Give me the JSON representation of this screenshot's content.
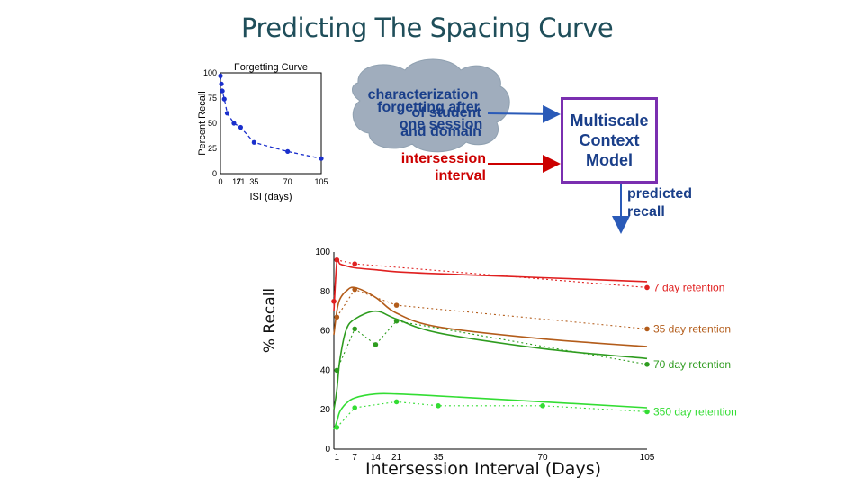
{
  "slide": {
    "title": "Predicting The Spacing Curve",
    "bubble_text_a": "characterization",
    "bubble_text_b": "forgetting after",
    "bubble_text_c": "of student",
    "bubble_text_d": "one session",
    "bubble_text_e": "and domain",
    "intersession_line1": "intersession",
    "intersession_line2": "interval",
    "model_line1": "Multiscale",
    "model_line2": "Context",
    "model_line3": "Model",
    "predicted_line1": "predicted",
    "predicted_line2": "recall",
    "colors": {
      "title": "#1f4e5a",
      "model_border": "#7a2fb0",
      "model_text": "#1a3f8a",
      "red_arrow": "#cc0000",
      "blue_arrow": "#2a5ab8"
    }
  },
  "chart_data": [
    {
      "type": "line",
      "title": "Forgetting Curve",
      "xlabel": "ISI (days)",
      "ylabel": "Percent Recall",
      "xlim": [
        0,
        105
      ],
      "ylim": [
        0,
        100
      ],
      "xticks": [
        "0",
        "17",
        "21",
        "35",
        "70",
        "105"
      ],
      "xtick_values": [
        0,
        17,
        21,
        35,
        70,
        105
      ],
      "yticks": [
        "0",
        "25",
        "50",
        "75",
        "100"
      ],
      "ytick_values": [
        0,
        25,
        50,
        75,
        100
      ],
      "x": [
        0,
        1,
        2,
        4,
        7,
        14,
        21,
        35,
        70,
        105
      ],
      "values": [
        97,
        89,
        82,
        74,
        60,
        50,
        46,
        31,
        22,
        15
      ],
      "color": "#1a2fcc"
    },
    {
      "type": "line",
      "xlabel": "Intersession Interval (Days)",
      "ylabel": "% Recall",
      "xlim": [
        0,
        105
      ],
      "ylim": [
        0,
        100
      ],
      "xticks": [
        "1",
        "7",
        "14",
        "21",
        "35",
        "70",
        "105"
      ],
      "xtick_values": [
        1,
        7,
        14,
        21,
        35,
        70,
        105
      ],
      "yticks": [
        "0",
        "20",
        "40",
        "60",
        "80",
        "100"
      ],
      "ytick_values": [
        0,
        20,
        40,
        60,
        80,
        100
      ],
      "series": [
        {
          "name": "7 day retention",
          "color": "#e02020",
          "model_x": [
            0,
            1,
            2,
            4,
            7,
            14,
            21,
            35,
            70,
            105
          ],
          "model_y": [
            70,
            95,
            94,
            93,
            92,
            91,
            90,
            89,
            87,
            85
          ],
          "obs_x": [
            0,
            1,
            7,
            105
          ],
          "obs_y": [
            75,
            96,
            94,
            82
          ]
        },
        {
          "name": "35 day retention",
          "color": "#b35c1a",
          "model_x": [
            0,
            1,
            2,
            4,
            7,
            14,
            21,
            35,
            70,
            105
          ],
          "model_y": [
            58,
            70,
            76,
            80,
            82,
            77,
            69,
            62,
            56,
            52
          ],
          "obs_x": [
            1,
            7,
            21,
            105
          ],
          "obs_y": [
            67,
            81,
            73,
            61
          ]
        },
        {
          "name": "70 day retention",
          "color": "#2e9c1f",
          "model_x": [
            0,
            1,
            2,
            4,
            7,
            14,
            21,
            35,
            70,
            105
          ],
          "model_y": [
            20,
            30,
            45,
            60,
            66,
            70,
            66,
            59,
            51,
            46
          ],
          "obs_x": [
            1,
            7,
            14,
            21,
            105
          ],
          "obs_y": [
            40,
            61,
            53,
            65,
            43
          ]
        },
        {
          "name": "350 day retention",
          "color": "#33dd33",
          "model_x": [
            0,
            1,
            2,
            4,
            7,
            14,
            21,
            35,
            70,
            105
          ],
          "model_y": [
            10,
            14,
            19,
            23,
            26,
            28,
            28,
            27,
            24,
            21
          ],
          "obs_x": [
            1,
            7,
            21,
            35,
            70,
            105
          ],
          "obs_y": [
            11,
            21,
            24,
            22,
            22,
            19
          ]
        }
      ]
    }
  ]
}
